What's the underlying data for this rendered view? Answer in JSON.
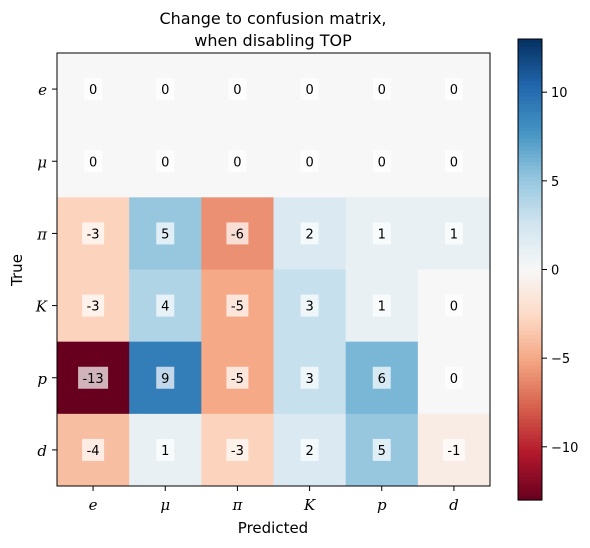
{
  "chart_data": {
    "type": "heatmap",
    "title": [
      "Change to confusion matrix,",
      "when disabling TOP"
    ],
    "xlabel": "Predicted",
    "ylabel": "True",
    "x_categories": [
      "e",
      "μ",
      "π",
      "K",
      "p",
      "d"
    ],
    "y_categories": [
      "e",
      "μ",
      "π",
      "K",
      "p",
      "d"
    ],
    "values": [
      [
        0,
        0,
        0,
        0,
        0,
        0
      ],
      [
        0,
        0,
        0,
        0,
        0,
        0
      ],
      [
        -3,
        5,
        -6,
        2,
        1,
        1
      ],
      [
        -3,
        4,
        -5,
        3,
        1,
        0
      ],
      [
        -13,
        9,
        -5,
        3,
        6,
        0
      ],
      [
        -4,
        1,
        -3,
        2,
        5,
        -1
      ]
    ],
    "colormap": "RdBu",
    "vmin": -13,
    "vmax": 13,
    "colorbar_ticks": [
      10,
      5,
      0,
      -5,
      -10
    ],
    "colorbar_tick_labels": [
      "10",
      "5",
      "0",
      "−5",
      "−10"
    ]
  }
}
